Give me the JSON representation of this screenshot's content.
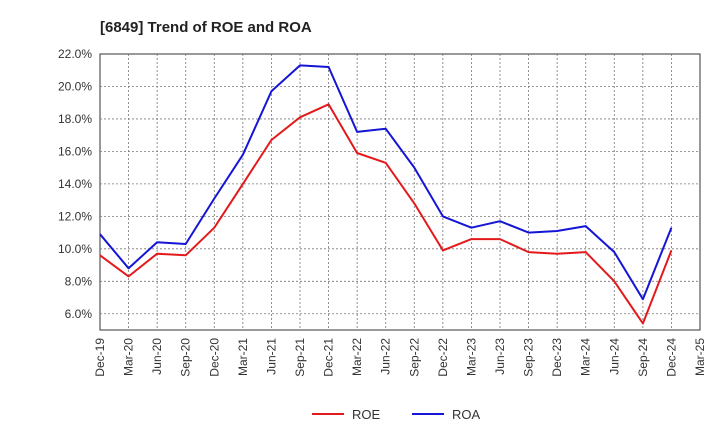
{
  "chart_data": {
    "type": "line",
    "title": "[6849]  Trend of ROE and ROA",
    "xlabel": "",
    "ylabel": "",
    "categories": [
      "Dec-19",
      "Mar-20",
      "Jun-20",
      "Sep-20",
      "Dec-20",
      "Mar-21",
      "Jun-21",
      "Sep-21",
      "Dec-21",
      "Mar-22",
      "Jun-22",
      "Sep-22",
      "Dec-22",
      "Mar-23",
      "Jun-23",
      "Sep-23",
      "Dec-23",
      "Mar-24",
      "Jun-24",
      "Sep-24",
      "Dec-24",
      "Mar-25"
    ],
    "ylim": [
      5.0,
      22.0
    ],
    "yticks": [
      6.0,
      8.0,
      10.0,
      12.0,
      14.0,
      16.0,
      18.0,
      20.0,
      22.0
    ],
    "ytick_labels": [
      "6.0%",
      "8.0%",
      "10.0%",
      "12.0%",
      "14.0%",
      "16.0%",
      "18.0%",
      "20.0%",
      "22.0%"
    ],
    "grid": true,
    "legend_position": "bottom-center",
    "series": [
      {
        "name": "ROE",
        "color": "#e31a1c",
        "values": [
          9.6,
          8.3,
          9.7,
          9.6,
          11.3,
          14.0,
          16.7,
          18.1,
          18.9,
          15.9,
          15.3,
          12.8,
          9.9,
          10.6,
          10.6,
          9.8,
          9.7,
          9.8,
          8.0,
          5.4,
          9.9,
          null
        ]
      },
      {
        "name": "ROA",
        "color": "#1515d6",
        "values": [
          10.9,
          8.8,
          10.4,
          10.3,
          13.1,
          15.8,
          19.7,
          21.3,
          21.2,
          17.2,
          17.4,
          15.0,
          12.0,
          11.3,
          11.7,
          11.0,
          11.1,
          11.4,
          9.8,
          6.9,
          11.3,
          null
        ]
      }
    ]
  }
}
